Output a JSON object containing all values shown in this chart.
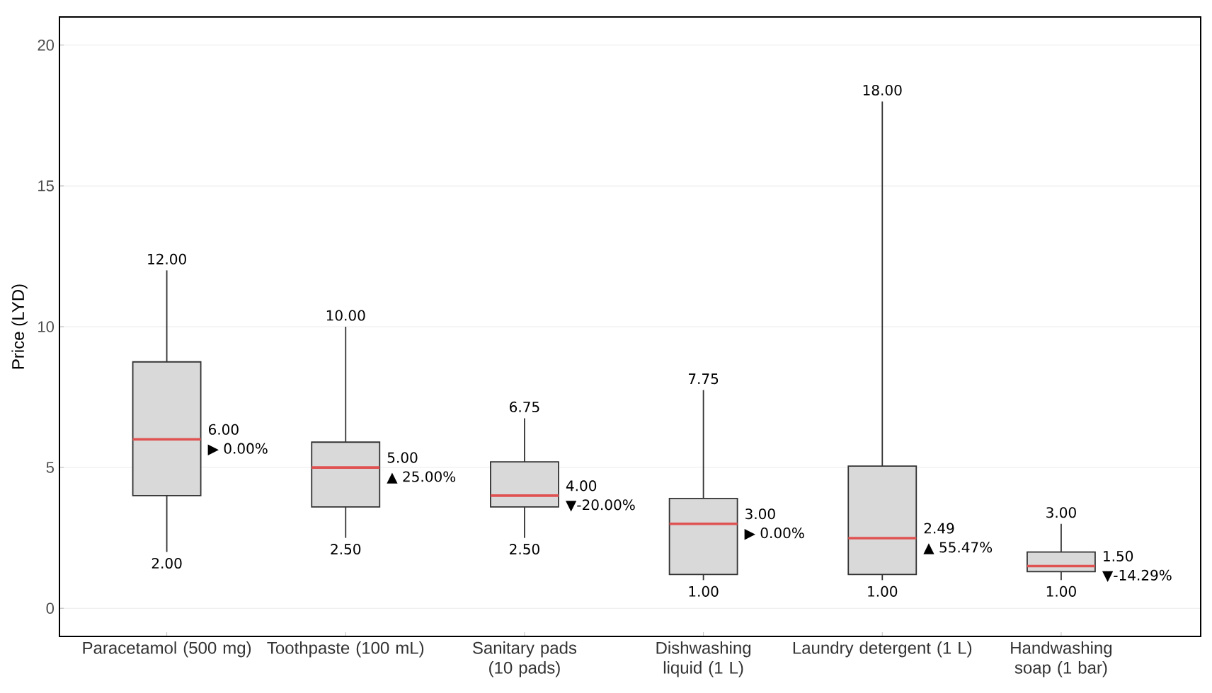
{
  "chart_data": {
    "type": "box",
    "ylabel": "Price (LYD)",
    "categories": [
      "Paracetamol (500 mg)",
      "Toothpaste (100 mL)",
      "Sanitary pads (10 pads)",
      "Dishwashing liquid (1 L)",
      "Laundry detergent (1 L)",
      "Handwashing soap (1 bar)"
    ],
    "color": "#d9d9d9",
    "boxes": [
      {
        "low": 2,
        "q1": 4,
        "median": 6,
        "q3": 8.75,
        "high": 12
      },
      {
        "low": 2.5,
        "q1": 3.6,
        "median": 5,
        "q3": 5.9,
        "high": 10
      },
      {
        "low": 2.5,
        "q1": 3.6,
        "median": 4,
        "q3": 5.2,
        "high": 6.75
      },
      {
        "low": 1,
        "q1": 1.2,
        "median": 3,
        "q3": 3.9,
        "high": 7.75
      },
      {
        "low": 1,
        "q1": 1.2,
        "median": 2.49,
        "q3": 5.05,
        "high": 18
      },
      {
        "low": 1,
        "q1": 1.3,
        "median": 1.5,
        "q3": 2,
        "high": 3
      }
    ],
    "ylim": [
      -1,
      21
    ],
    "yticks": [
      0,
      5,
      10,
      15,
      20
    ],
    "grid": "y",
    "annotations": [
      "12.00",
      "2.00",
      "6.00",
      "▶ 0.00%",
      "10.00",
      "2.50",
      "5.00",
      "▲ 25.00%",
      "6.75",
      "2.50",
      "4.00",
      "▼-20.00%",
      "7.75",
      "1.00",
      "3.00",
      "▶ 0.00%",
      "18.00",
      "1.00",
      "2.49",
      "▲ 55.47%",
      "3.00",
      "1.00",
      "1.50",
      "▼-14.29%"
    ]
  }
}
